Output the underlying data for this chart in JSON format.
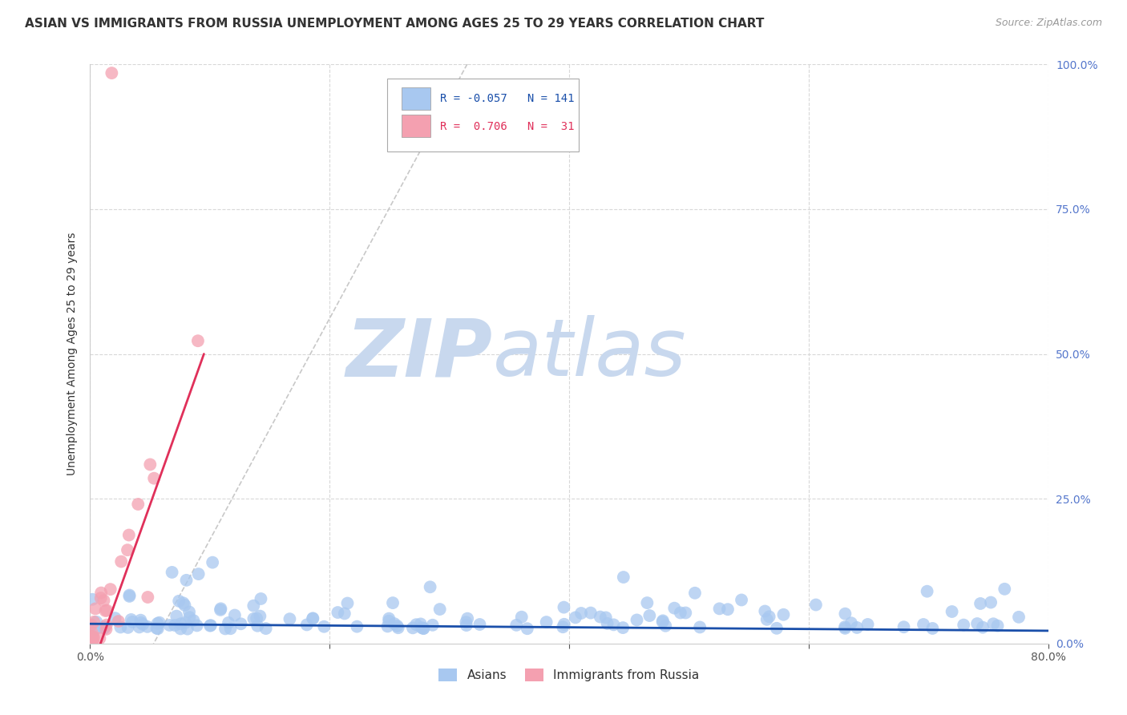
{
  "title": "ASIAN VS IMMIGRANTS FROM RUSSIA UNEMPLOYMENT AMONG AGES 25 TO 29 YEARS CORRELATION CHART",
  "source": "Source: ZipAtlas.com",
  "ylabel": "Unemployment Among Ages 25 to 29 years",
  "xlim": [
    0,
    0.8
  ],
  "ylim": [
    0,
    1.0
  ],
  "R_asian": -0.057,
  "N_asian": 141,
  "R_russia": 0.706,
  "N_russia": 31,
  "asian_color": "#a8c8f0",
  "russia_color": "#f4a0b0",
  "asian_line_color": "#1a4faa",
  "russia_line_color": "#e0305a",
  "gray_dash_color": "#c8c8c8",
  "watermark_zip_color": "#c8d8ee",
  "watermark_atlas_color": "#c8d8ee",
  "background_color": "#ffffff",
  "grid_color": "#d8d8d8",
  "title_color": "#333333",
  "source_color": "#999999",
  "legend_text_asian_color": "#1a4faa",
  "legend_text_russia_color": "#e0305a",
  "axis_label_color": "#555555",
  "right_axis_color": "#5577cc"
}
